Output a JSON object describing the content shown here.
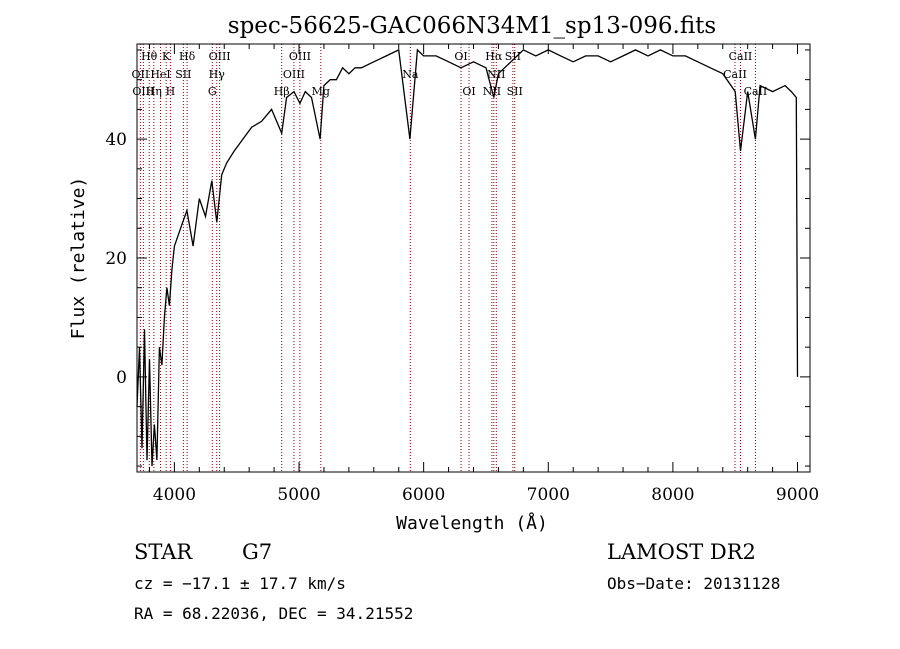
{
  "chart_data": {
    "type": "line",
    "title": "spec-56625-GAC066N34M1_sp13-096.fits",
    "xlabel": "Wavelength (Å)",
    "ylabel": "Flux (relative)",
    "xlim": [
      3700,
      9100
    ],
    "ylim": [
      -16,
      56
    ],
    "xticks": [
      4000,
      5000,
      6000,
      7000,
      8000,
      9000
    ],
    "yticks": [
      0,
      20,
      40
    ],
    "grid": false,
    "series": [
      {
        "x": [
          3700,
          3720,
          3740,
          3760,
          3780,
          3800,
          3820,
          3840,
          3860,
          3880,
          3900,
          3920,
          3940,
          3960,
          3980,
          4000,
          4050,
          4100,
          4150,
          4200,
          4250,
          4300,
          4340,
          4380,
          4420,
          4480,
          4550,
          4620,
          4700,
          4780,
          4861,
          4900,
          4960,
          5007,
          5050,
          5100,
          5169,
          5200,
          5250,
          5300,
          5350,
          5400,
          5450,
          5500,
          5600,
          5700,
          5800,
          5890,
          5950,
          6000,
          6100,
          6200,
          6300,
          6400,
          6500,
          6563,
          6600,
          6700,
          6800,
          6900,
          7000,
          7100,
          7200,
          7300,
          7400,
          7500,
          7600,
          7700,
          7800,
          7900,
          8000,
          8100,
          8200,
          8300,
          8400,
          8500,
          8542,
          8600,
          8662,
          8700,
          8800,
          8900,
          8950,
          8990,
          9000
        ],
        "y": [
          -5,
          5,
          -12,
          8,
          -14,
          3,
          -15,
          -8,
          -14,
          5,
          2,
          10,
          15,
          12,
          18,
          22,
          25,
          28,
          22,
          30,
          27,
          33,
          26,
          34,
          36,
          38,
          40,
          42,
          43,
          45,
          41,
          47,
          48,
          46,
          48,
          47,
          40,
          49,
          50,
          50,
          52,
          51,
          52,
          52,
          53,
          54,
          55,
          40,
          55,
          54,
          54,
          53,
          52,
          53,
          52,
          47,
          51,
          53,
          55,
          54,
          55,
          54,
          53,
          54,
          54,
          53,
          54,
          55,
          54,
          55,
          54,
          54,
          53,
          52,
          51,
          48,
          38,
          48,
          40,
          49,
          48,
          49,
          48,
          47,
          0
        ]
      }
    ],
    "line_markers": [
      {
        "label": "Hθ",
        "x": 3798,
        "row": 0
      },
      {
        "label": "OII",
        "x": 3727,
        "row": 1
      },
      {
        "label": "OIII",
        "x": 3751,
        "row": 2
      },
      {
        "label": "K",
        "x": 3934,
        "row": 0
      },
      {
        "label": "HeI",
        "x": 3889,
        "row": 1
      },
      {
        "label": "Hη",
        "x": 3835,
        "row": 2
      },
      {
        "label": "Hδ",
        "x": 4102,
        "row": 0
      },
      {
        "label": "SII",
        "x": 4072,
        "row": 1
      },
      {
        "label": "H",
        "x": 3968,
        "row": 2
      },
      {
        "label": "OIII",
        "x": 4363,
        "row": 0
      },
      {
        "label": "Hγ",
        "x": 4340,
        "row": 1
      },
      {
        "label": "G",
        "x": 4304,
        "row": 2
      },
      {
        "label": "OIII",
        "x": 5007,
        "row": 0
      },
      {
        "label": "OIII",
        "x": 4959,
        "row": 1
      },
      {
        "label": "Hβ",
        "x": 4861,
        "row": 2
      },
      {
        "label": "Mg",
        "x": 5175,
        "row": 2
      },
      {
        "label": "Na",
        "x": 5893,
        "row": 1
      },
      {
        "label": "OI",
        "x": 6300,
        "row": 0
      },
      {
        "label": "OI",
        "x": 6364,
        "row": 2
      },
      {
        "label": "Hα",
        "x": 6563,
        "row": 0
      },
      {
        "label": "NII",
        "x": 6548,
        "row": 2
      },
      {
        "label": "SII",
        "x": 6716,
        "row": 0
      },
      {
        "label": "NII",
        "x": 6583,
        "row": 1
      },
      {
        "label": "SII",
        "x": 6731,
        "row": 2
      },
      {
        "label": "CaII",
        "x": 8542,
        "row": 0
      },
      {
        "label": "CaII",
        "x": 8498,
        "row": 1
      },
      {
        "label": "CaII",
        "x": 8662,
        "row": 2
      }
    ],
    "colors": {
      "spectrum": "#000000",
      "lines": "#8b0000",
      "axes": "#000000"
    }
  },
  "info": {
    "object_class": "STAR",
    "subclass": "G7",
    "survey": "LAMOST DR2",
    "cz": "cz = −17.1 ± 17.7 km/s",
    "obs_date": "Obs−Date: 20131128",
    "coords": "RA =  68.22036, DEC =  34.21552"
  }
}
